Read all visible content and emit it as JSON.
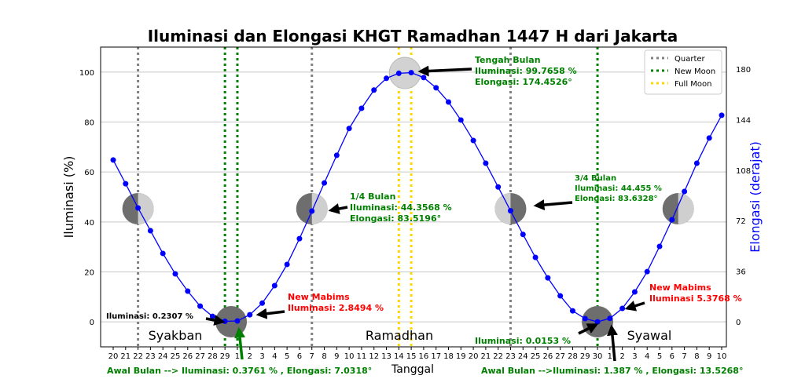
{
  "chart_data": {
    "type": "line",
    "title": "Iluminasi dan Elongasi KHGT Ramadhan 1447 H dari Jakarta",
    "xlabel": "Tanggal",
    "ylabel": "Iluminasi (%)",
    "ylabel_right": "Elongasi (derajat)",
    "ylim": [
      -10,
      110
    ],
    "yticks": [
      0,
      20,
      40,
      60,
      80,
      100
    ],
    "yticks_right": [
      0,
      36,
      72,
      108,
      144,
      180
    ],
    "x_ticks": [
      "20",
      "21",
      "22",
      "23",
      "24",
      "25",
      "26",
      "27",
      "28",
      "29",
      "1",
      "2",
      "3",
      "4",
      "5",
      "6",
      "7",
      "8",
      "9",
      "10",
      "11",
      "12",
      "13",
      "14",
      "15",
      "16",
      "17",
      "18",
      "19",
      "20",
      "21",
      "22",
      "23",
      "24",
      "25",
      "26",
      "27",
      "28",
      "29",
      "30",
      "1",
      "2",
      "3",
      "4",
      "5",
      "6",
      "7",
      "8",
      "9",
      "10"
    ],
    "months": [
      "Syakban",
      "Ramadhan",
      "Syawal"
    ],
    "series": [
      {
        "name": "Iluminasi",
        "color": "#0000ff",
        "values": [
          64.8,
          55.3,
          45.6,
          36.5,
          27.4,
          19.2,
          12.3,
          6.3,
          2.2,
          0.2307,
          0.3761,
          2.8494,
          7.5,
          14.5,
          23.0,
          33.3,
          44.3568,
          55.6,
          66.7,
          77.4,
          85.5,
          92.8,
          97.5,
          99.5,
          99.7658,
          97.8,
          93.7,
          88.0,
          80.8,
          72.6,
          63.5,
          54.0,
          44.455,
          35.0,
          25.8,
          17.6,
          10.4,
          4.4,
          1.3,
          0.0153,
          1.387,
          5.3768,
          12.0,
          20.1,
          30.2,
          40.9,
          52.2,
          63.5,
          73.6,
          82.7
        ]
      }
    ],
    "vlines": [
      {
        "type": "Quarter",
        "index": 2,
        "color": "#808080"
      },
      {
        "type": "Quarter",
        "index": 16,
        "color": "#808080"
      },
      {
        "type": "Quarter",
        "index": 32,
        "color": "#808080"
      },
      {
        "type": "New Moon",
        "index": 9,
        "color": "#008000"
      },
      {
        "type": "New Moon",
        "index": 10,
        "color": "#008000"
      },
      {
        "type": "New Moon",
        "index": 39,
        "color": "#008000"
      },
      {
        "type": "Full Moon",
        "index": 23,
        "color": "#ffd700"
      },
      {
        "type": "Full Moon",
        "index": 24,
        "color": "#ffd700"
      }
    ],
    "legend": {
      "placement": "top-right",
      "entries": [
        {
          "label": "Quarter",
          "color": "#808080"
        },
        {
          "label": "New Moon",
          "color": "#008000"
        },
        {
          "label": "Full Moon",
          "color": "#ffd700"
        }
      ]
    },
    "moons": [
      {
        "index": 2,
        "phase": "quarter"
      },
      {
        "index": 9.5,
        "phase": "new"
      },
      {
        "index": 16,
        "phase": "first"
      },
      {
        "index": 23.5,
        "phase": "full"
      },
      {
        "index": 32,
        "phase": "last"
      },
      {
        "index": 39,
        "phase": "new"
      },
      {
        "index": 45.5,
        "phase": "first"
      }
    ],
    "annotations": [
      {
        "lines": [
          "Tengah Bulan",
          "Iluminasi: 99.7658 %",
          "Elongasi: 174.4526°"
        ],
        "color": "#008000"
      },
      {
        "lines": [
          "1/4 Bulan",
          "Iluminasi: 44.3568 %",
          "Elongasi: 83.5196°"
        ],
        "color": "#008000"
      },
      {
        "lines": [
          "3/4 Bulan",
          "Iluminasi: 44.455 %",
          "Elongasi: 83.6328°"
        ],
        "color": "#008000"
      },
      {
        "lines": [
          "Iluminasi: 0.2307 %"
        ],
        "color": "#000000"
      },
      {
        "lines": [
          "New Mabims",
          "Iluminasi: 2.8494 %"
        ],
        "color": "#ff0000"
      },
      {
        "lines": [
          "Awal Bulan --> Iluminasi: 0.3761 % , Elongasi: 7.0318°"
        ],
        "color": "#008000"
      },
      {
        "lines": [
          "Iluminasi: 0.0153 %"
        ],
        "color": "#008000"
      },
      {
        "lines": [
          "New Mabims",
          "Iluminasi 5.3768 %"
        ],
        "color": "#ff0000"
      },
      {
        "lines": [
          "Awal Bulan -->Iluminasi: 1.387 % , Elongasi: 13.5268°"
        ],
        "color": "#008000"
      }
    ]
  }
}
